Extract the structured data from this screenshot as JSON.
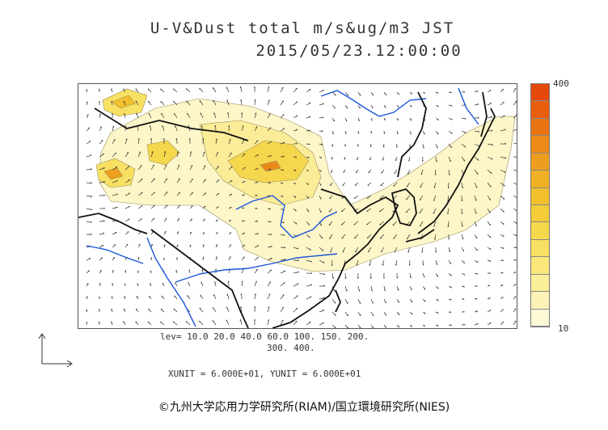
{
  "title_line1": "U-V&Dust total m/s&ug/m3 JST",
  "title_line2": "2015/05/23.12:00:00",
  "colorbar": {
    "max_label": "400",
    "min_label": "10",
    "colors": [
      "#fdf8d6",
      "#fdf3b6",
      "#fbee98",
      "#f9e77a",
      "#f8e063",
      "#f6d84c",
      "#f4cc38",
      "#f2c02c",
      "#f0b024",
      "#ee9e1e",
      "#ec8a18",
      "#ea7412",
      "#e85e0e",
      "#e6480a"
    ]
  },
  "levels_line1": "lev= 10.0 20.0 40.0 60.0 100. 150. 200.",
  "levels_line2": "300. 400.",
  "units_line": "XUNIT = 6.000E+01, YUNIT = 6.000E+01",
  "credit": "©九州大学応用力学研究所(RIAM)/国立環境研究所(NIES)",
  "map": {
    "coast_color": "#111111",
    "river_color": "#1a55d8",
    "vector_color": "#333333"
  }
}
